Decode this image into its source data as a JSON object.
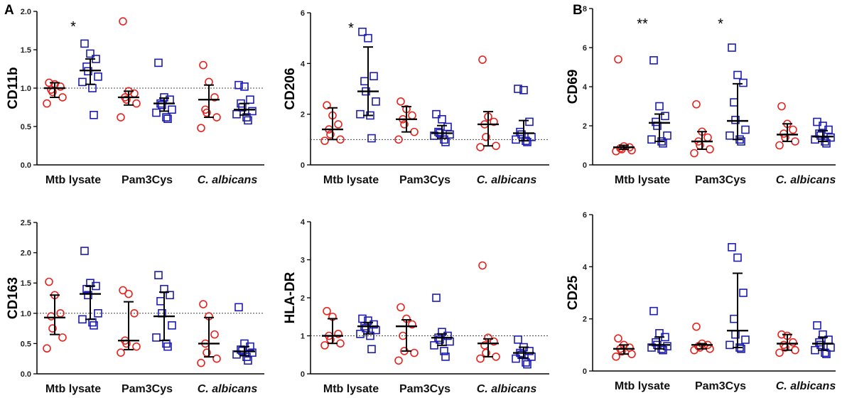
{
  "panel_labels": {
    "a": "A",
    "b": "B"
  },
  "colors": {
    "group1": "#e8231f",
    "group2": "#1c1cb0",
    "axis": "#000000",
    "summary": "#000000"
  },
  "chart_data": [
    {
      "type": "scatter",
      "ylabel": "CD11b",
      "ylim": [
        0,
        2.0
      ],
      "yticks": [
        "0.0",
        "0.5",
        "1.0",
        "1.5",
        "2.0"
      ],
      "reference_line": 1.0,
      "categories": [
        "Mtb lysate",
        "Pam3Cys",
        "C. albicans"
      ],
      "italic_categories": [
        false,
        false,
        true
      ],
      "series": [
        {
          "name": "circles",
          "marker": "circle",
          "values": [
            [
              1.07,
              1.05,
              1.02,
              0.98,
              0.95,
              0.88,
              0.8
            ],
            [
              1.87,
              0.96,
              0.93,
              0.88,
              0.85,
              0.8,
              0.62
            ],
            [
              1.3,
              1.08,
              0.88,
              0.72,
              0.68,
              0.62,
              0.48
            ]
          ],
          "summary": [
            {
              "median": 1.0,
              "low": 0.88,
              "high": 1.07
            },
            {
              "median": 0.88,
              "low": 0.78,
              "high": 0.96
            },
            {
              "median": 0.85,
              "low": 0.62,
              "high": 1.04
            }
          ]
        },
        {
          "name": "squares",
          "marker": "square",
          "values": [
            [
              1.58,
              1.45,
              1.38,
              1.28,
              1.22,
              1.15,
              1.08,
              1.0,
              0.65
            ],
            [
              1.33,
              0.88,
              0.85,
              0.8,
              0.78,
              0.72,
              0.68,
              0.62,
              0.6
            ],
            [
              1.04,
              1.02,
              0.85,
              0.8,
              0.75,
              0.7,
              0.66,
              0.62,
              0.58
            ]
          ],
          "summary": [
            {
              "median": 1.23,
              "low": 1.05,
              "high": 1.38
            },
            {
              "median": 0.8,
              "low": 0.7,
              "high": 0.87
            },
            {
              "median": 0.72,
              "low": 0.65,
              "high": 0.8
            }
          ]
        }
      ],
      "annotations": [
        {
          "category": 0,
          "text": "*"
        }
      ]
    },
    {
      "type": "scatter",
      "ylabel": "CD206",
      "ylim": [
        0,
        6
      ],
      "yticks": [
        "0",
        "2",
        "4",
        "6"
      ],
      "reference_line": 1.0,
      "categories": [
        "Mtb lysate",
        "Pam3Cys",
        "C. albicans"
      ],
      "italic_categories": [
        false,
        false,
        true
      ],
      "series": [
        {
          "name": "circles",
          "marker": "circle",
          "values": [
            [
              2.35,
              1.95,
              1.6,
              1.4,
              1.2,
              1.0,
              0.95
            ],
            [
              2.5,
              2.2,
              1.95,
              1.8,
              1.6,
              1.3,
              1.0
            ],
            [
              4.15,
              1.9,
              1.7,
              1.6,
              1.1,
              0.75,
              0.7
            ]
          ],
          "summary": [
            {
              "median": 1.4,
              "low": 1.0,
              "high": 2.25
            },
            {
              "median": 1.8,
              "low": 1.3,
              "high": 2.3
            },
            {
              "median": 1.6,
              "low": 0.75,
              "high": 2.1
            }
          ]
        },
        {
          "name": "squares",
          "marker": "square",
          "values": [
            [
              5.25,
              5.0,
              3.5,
              3.3,
              2.9,
              2.5,
              2.0,
              1.95,
              1.05
            ],
            [
              2.0,
              1.8,
              1.5,
              1.3,
              1.25,
              1.2,
              1.15,
              1.0,
              0.9
            ],
            [
              3.0,
              2.95,
              1.7,
              1.3,
              1.2,
              1.1,
              1.0,
              0.95,
              0.9
            ]
          ],
          "summary": [
            {
              "median": 2.9,
              "low": 1.95,
              "high": 4.65
            },
            {
              "median": 1.25,
              "low": 1.05,
              "high": 1.55
            },
            {
              "median": 1.25,
              "low": 0.95,
              "high": 1.75
            }
          ]
        }
      ],
      "annotations": [
        {
          "category": 0,
          "text": "*"
        }
      ]
    },
    {
      "type": "scatter",
      "ylabel": "CD69",
      "ylim": [
        0,
        8
      ],
      "yticks": [
        "0",
        "2",
        "4",
        "6",
        "8"
      ],
      "reference_line": null,
      "categories": [
        "Mtb lysate",
        "Pam3Cys",
        "C. albicans"
      ],
      "italic_categories": [
        false,
        false,
        true
      ],
      "series": [
        {
          "name": "circles",
          "marker": "circle",
          "values": [
            [
              5.4,
              0.95,
              0.9,
              0.85,
              0.8,
              0.75,
              0.7
            ],
            [
              3.1,
              1.7,
              1.4,
              1.2,
              1.0,
              0.8,
              0.6
            ],
            [
              3.0,
              2.1,
              1.8,
              1.6,
              1.4,
              1.2,
              1.0
            ]
          ],
          "summary": [
            {
              "median": 0.9,
              "low": 0.8,
              "high": 1.0
            },
            {
              "median": 1.2,
              "low": 0.8,
              "high": 1.7
            },
            {
              "median": 1.55,
              "low": 1.2,
              "high": 2.1
            }
          ]
        },
        {
          "name": "squares",
          "marker": "square",
          "values": [
            [
              5.35,
              3.0,
              2.5,
              2.2,
              2.0,
              1.5,
              1.3,
              1.2,
              1.1
            ],
            [
              6.0,
              4.6,
              4.2,
              3.2,
              2.3,
              1.8,
              1.5,
              1.3,
              1.2
            ],
            [
              2.2,
              2.0,
              1.8,
              1.6,
              1.5,
              1.4,
              1.3,
              1.2,
              1.1
            ]
          ],
          "summary": [
            {
              "median": 2.15,
              "low": 1.2,
              "high": 2.6
            },
            {
              "median": 2.25,
              "low": 1.3,
              "high": 4.15
            },
            {
              "median": 1.45,
              "low": 1.2,
              "high": 1.75
            }
          ]
        }
      ],
      "annotations": [
        {
          "category": 0,
          "text": "**"
        },
        {
          "category": 1,
          "text": "*"
        }
      ]
    },
    {
      "type": "scatter",
      "ylabel": "CD163",
      "ylim": [
        0,
        2.5
      ],
      "yticks": [
        "0.0",
        "0.5",
        "1.0",
        "1.5",
        "2.0",
        "2.5"
      ],
      "reference_line": 1.0,
      "categories": [
        "Mtb lysate",
        "Pam3Cys",
        "C. albicans"
      ],
      "italic_categories": [
        false,
        false,
        true
      ],
      "series": [
        {
          "name": "circles",
          "marker": "circle",
          "values": [
            [
              1.52,
              1.3,
              1.0,
              0.95,
              0.75,
              0.6,
              0.42
            ],
            [
              1.38,
              1.32,
              1.0,
              0.55,
              0.5,
              0.45,
              0.35
            ],
            [
              1.15,
              0.95,
              0.65,
              0.5,
              0.35,
              0.25,
              0.18
            ]
          ],
          "summary": [
            {
              "median": 0.93,
              "low": 0.65,
              "high": 1.3
            },
            {
              "median": 0.55,
              "low": 0.4,
              "high": 1.19
            },
            {
              "median": 0.5,
              "low": 0.28,
              "high": 0.93
            }
          ]
        },
        {
          "name": "squares",
          "marker": "square",
          "values": [
            [
              2.03,
              1.5,
              1.45,
              1.4,
              1.3,
              1.0,
              0.9,
              0.85,
              0.8
            ],
            [
              1.63,
              1.4,
              1.3,
              1.2,
              1.0,
              0.8,
              0.6,
              0.5,
              0.45
            ],
            [
              1.1,
              0.5,
              0.45,
              0.4,
              0.38,
              0.35,
              0.32,
              0.28,
              0.22
            ]
          ],
          "summary": [
            {
              "median": 1.32,
              "low": 0.9,
              "high": 1.45
            },
            {
              "median": 0.95,
              "low": 0.55,
              "high": 1.35
            },
            {
              "median": 0.37,
              "low": 0.3,
              "high": 0.45
            }
          ]
        }
      ],
      "annotations": []
    },
    {
      "type": "scatter",
      "ylabel": "HLA-DR",
      "ylim": [
        0,
        4
      ],
      "yticks": [
        "0",
        "1",
        "2",
        "3",
        "4"
      ],
      "reference_line": 1.0,
      "categories": [
        "Mtb lysate",
        "Pam3Cys",
        "C. albicans"
      ],
      "italic_categories": [
        false,
        false,
        true
      ],
      "series": [
        {
          "name": "circles",
          "marker": "circle",
          "values": [
            [
              1.65,
              1.5,
              1.05,
              1.0,
              0.9,
              0.8,
              0.75
            ],
            [
              1.75,
              1.45,
              1.3,
              1.0,
              0.6,
              0.55,
              0.35
            ],
            [
              2.85,
              0.95,
              0.85,
              0.75,
              0.55,
              0.45,
              0.4
            ]
          ],
          "summary": [
            {
              "median": 1.0,
              "low": 0.8,
              "high": 1.45
            },
            {
              "median": 1.25,
              "low": 0.6,
              "high": 1.42
            },
            {
              "median": 0.8,
              "low": 0.45,
              "high": 0.92
            }
          ]
        },
        {
          "name": "squares",
          "marker": "square",
          "values": [
            [
              1.45,
              1.4,
              1.3,
              1.25,
              1.2,
              1.15,
              1.05,
              1.0,
              0.65
            ],
            [
              2.0,
              1.1,
              1.0,
              0.95,
              0.9,
              0.85,
              0.75,
              0.6,
              0.45
            ],
            [
              0.9,
              0.7,
              0.6,
              0.55,
              0.5,
              0.45,
              0.4,
              0.3,
              0.25
            ]
          ],
          "summary": [
            {
              "median": 1.25,
              "low": 1.05,
              "high": 1.35
            },
            {
              "median": 0.95,
              "low": 0.75,
              "high": 1.05
            },
            {
              "median": 0.55,
              "low": 0.42,
              "high": 0.7
            }
          ]
        }
      ],
      "annotations": []
    },
    {
      "type": "scatter",
      "ylabel": "CD25",
      "ylim": [
        0,
        6
      ],
      "yticks": [
        "0",
        "2",
        "4",
        "6"
      ],
      "reference_line": null,
      "categories": [
        "Mtb lysate",
        "Pam3Cys",
        "C. albicans"
      ],
      "italic_categories": [
        false,
        false,
        true
      ],
      "series": [
        {
          "name": "circles",
          "marker": "circle",
          "values": [
            [
              1.25,
              1.0,
              0.9,
              0.85,
              0.75,
              0.65,
              0.55
            ],
            [
              1.7,
              1.05,
              1.0,
              0.95,
              0.9,
              0.85,
              0.8
            ],
            [
              1.4,
              1.35,
              1.1,
              1.0,
              0.9,
              0.8,
              0.7
            ]
          ],
          "summary": [
            {
              "median": 0.85,
              "low": 0.65,
              "high": 1.0
            },
            {
              "median": 1.0,
              "low": 0.85,
              "high": 1.05
            },
            {
              "median": 1.05,
              "low": 0.8,
              "high": 1.4
            }
          ]
        },
        {
          "name": "squares",
          "marker": "square",
          "values": [
            [
              2.3,
              1.45,
              1.3,
              1.1,
              1.0,
              0.95,
              0.9,
              0.85,
              0.8
            ],
            [
              4.75,
              4.35,
              3.0,
              2.0,
              1.4,
              1.2,
              1.0,
              0.9,
              0.85
            ],
            [
              1.75,
              1.4,
              1.2,
              1.1,
              1.0,
              0.9,
              0.8,
              0.7,
              0.65
            ]
          ],
          "summary": [
            {
              "median": 1.0,
              "low": 0.85,
              "high": 1.3
            },
            {
              "median": 1.55,
              "low": 0.9,
              "high": 3.75
            },
            {
              "median": 1.05,
              "low": 0.8,
              "high": 1.3
            }
          ]
        }
      ],
      "annotations": []
    }
  ]
}
